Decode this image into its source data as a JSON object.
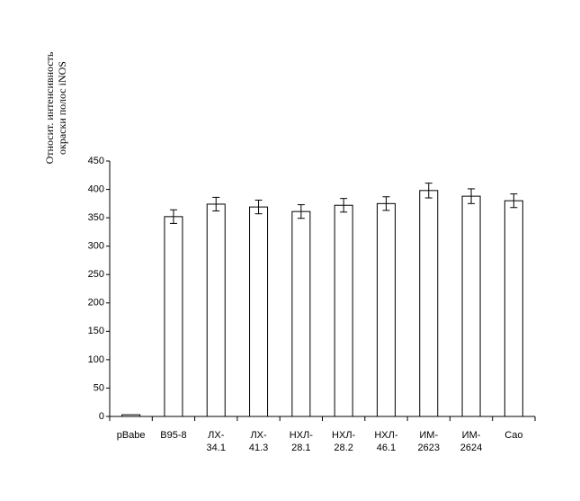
{
  "chart_data": {
    "type": "bar",
    "ylabel": "Относит. интенсивность\nокраски полос iNOS",
    "categories": [
      "pBabe",
      "B95-8",
      "ЛХ-\n34.1",
      "ЛХ-\n41.3",
      "НХЛ-\n28.1",
      "НХЛ-\n28.2",
      "НХЛ-\n46.1",
      "ИМ-\n2623",
      "ИМ-\n2624",
      "Сао"
    ],
    "values": [
      3,
      352,
      374,
      369,
      361,
      372,
      375,
      398,
      388,
      380
    ],
    "errors": [
      0,
      12,
      12,
      12,
      12,
      12,
      12,
      13,
      13,
      12
    ],
    "color": "#ffffff",
    "ylim": [
      0,
      450
    ],
    "yticks": [
      0,
      50,
      100,
      150,
      200,
      250,
      300,
      350,
      400,
      450
    ],
    "grid": false
  }
}
